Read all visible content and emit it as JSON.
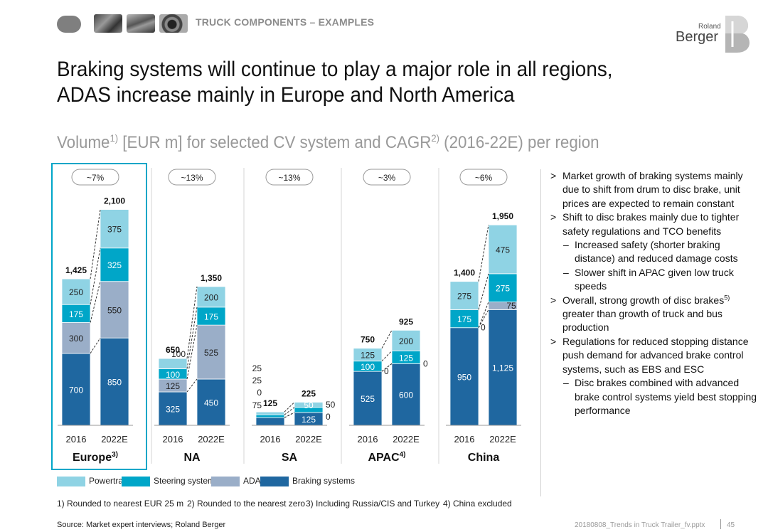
{
  "header": {
    "section_label": "TRUCK COMPONENTS – EXAMPLES",
    "logo_small": "Roland",
    "logo_main": "Berger"
  },
  "title": "Braking systems will continue to play a major role in all regions, ADAS increase mainly in Europe and North America",
  "subtitle": {
    "p1": "Volume",
    "s1": "1)",
    "p2": " [EUR m] for selected CV system and CAGR",
    "s2": "2)",
    "p3": " (2016-22E) per region"
  },
  "colors": {
    "powertrain": "#8fd3e4",
    "steering": "#00a6c8",
    "adas": "#9aaec8",
    "braking": "#1f67a0",
    "highlight": "#00a6c8"
  },
  "chart_data": {
    "type": "bar",
    "stacked": true,
    "unit": "EUR m",
    "series_order": [
      "Braking systems",
      "ADAS",
      "Steering systems",
      "Powertrain"
    ],
    "regions": [
      {
        "name": "Europe",
        "sup": "3)",
        "cagr": "~7%",
        "highlight": true,
        "bars": [
          {
            "year": "2016",
            "values": [
              700,
              300,
              175,
              250
            ],
            "labels": [
              "700",
              "300",
              "175",
              "250"
            ],
            "total": "1,425"
          },
          {
            "year": "2022E",
            "values": [
              850,
              550,
              325,
              375
            ],
            "labels": [
              "850",
              "550",
              "325",
              "375"
            ],
            "total": "2,100"
          }
        ]
      },
      {
        "name": "NA",
        "sup": "",
        "cagr": "~13%",
        "highlight": false,
        "bars": [
          {
            "year": "2016",
            "values": [
              325,
              125,
              100,
              100
            ],
            "labels": [
              "325",
              "125",
              "100",
              "100"
            ],
            "total": "650"
          },
          {
            "year": "2022E",
            "values": [
              450,
              525,
              175,
              200
            ],
            "labels": [
              "450",
              "525",
              "175",
              "200"
            ],
            "total": "1,350"
          }
        ]
      },
      {
        "name": "SA",
        "sup": "",
        "cagr": "~13%",
        "highlight": false,
        "bars": [
          {
            "year": "2016",
            "values": [
              75,
              0,
              25,
              25
            ],
            "labels": [
              "75",
              "0",
              "25",
              "25"
            ],
            "total": "125"
          },
          {
            "year": "2022E",
            "values": [
              125,
              0,
              50,
              50
            ],
            "labels": [
              "125",
              "0",
              "50",
              "50"
            ],
            "total": "225"
          }
        ]
      },
      {
        "name": "APAC",
        "sup": "4)",
        "cagr": "~3%",
        "highlight": false,
        "bars": [
          {
            "year": "2016",
            "values": [
              525,
              0,
              100,
              125
            ],
            "labels": [
              "525",
              "0",
              "100",
              "125"
            ],
            "total": "750"
          },
          {
            "year": "2022E",
            "values": [
              600,
              0,
              125,
              200
            ],
            "labels": [
              "600",
              "0",
              "125",
              "200"
            ],
            "total": "925"
          }
        ]
      },
      {
        "name": "China",
        "sup": "",
        "cagr": "~6%",
        "highlight": false,
        "bars": [
          {
            "year": "2016",
            "values": [
              950,
              0,
              175,
              275
            ],
            "labels": [
              "950",
              "0",
              "175",
              "275"
            ],
            "total": "1,400"
          },
          {
            "year": "2022E",
            "values": [
              1125,
              75,
              275,
              475
            ],
            "labels": [
              "1,125",
              "75",
              "275",
              "475"
            ],
            "total": "1,950"
          }
        ]
      }
    ]
  },
  "legend": [
    {
      "label": "Powertrain",
      "color": "#8fd3e4"
    },
    {
      "label": "Steering systems",
      "color": "#00a6c8"
    },
    {
      "label": "ADAS",
      "color": "#9aaec8"
    },
    {
      "label": "Braking systems",
      "color": "#1f67a0"
    }
  ],
  "footnotes": [
    "1) Rounded to nearest EUR 25 m",
    "2) Rounded to the nearest zero",
    "3) Including Russia/CIS and Turkey",
    "4) China excluded"
  ],
  "bullets": [
    {
      "level": 1,
      "mark": ">",
      "text": "Market growth of braking systems mainly due to shift from drum to disc brake, unit prices are expected to remain constant"
    },
    {
      "level": 1,
      "mark": ">",
      "text": "Shift to disc brakes mainly due to tighter safety regulations and TCO benefits"
    },
    {
      "level": 2,
      "mark": "–",
      "text": "Increased safety (shorter braking distance) and reduced damage costs"
    },
    {
      "level": 2,
      "mark": "–",
      "text": "Slower shift in APAC given low truck speeds"
    },
    {
      "level": 1,
      "mark": ">",
      "text": "Overall, strong growth of disc brakes",
      "sup": "5)",
      "text2": " greater than growth of truck and bus production"
    },
    {
      "level": 1,
      "mark": ">",
      "text": "Regulations for reduced stopping distance push demand for advanced brake control systems, such as EBS and ESC"
    },
    {
      "level": 2,
      "mark": "–",
      "text": "Disc brakes combined with advanced brake control systems yield best stopping performance"
    }
  ],
  "footer": {
    "source": "Source: Market expert interviews; Roland Berger",
    "file": "20180808_Trends in Truck Trailer_fv.pptx",
    "page": "45"
  }
}
